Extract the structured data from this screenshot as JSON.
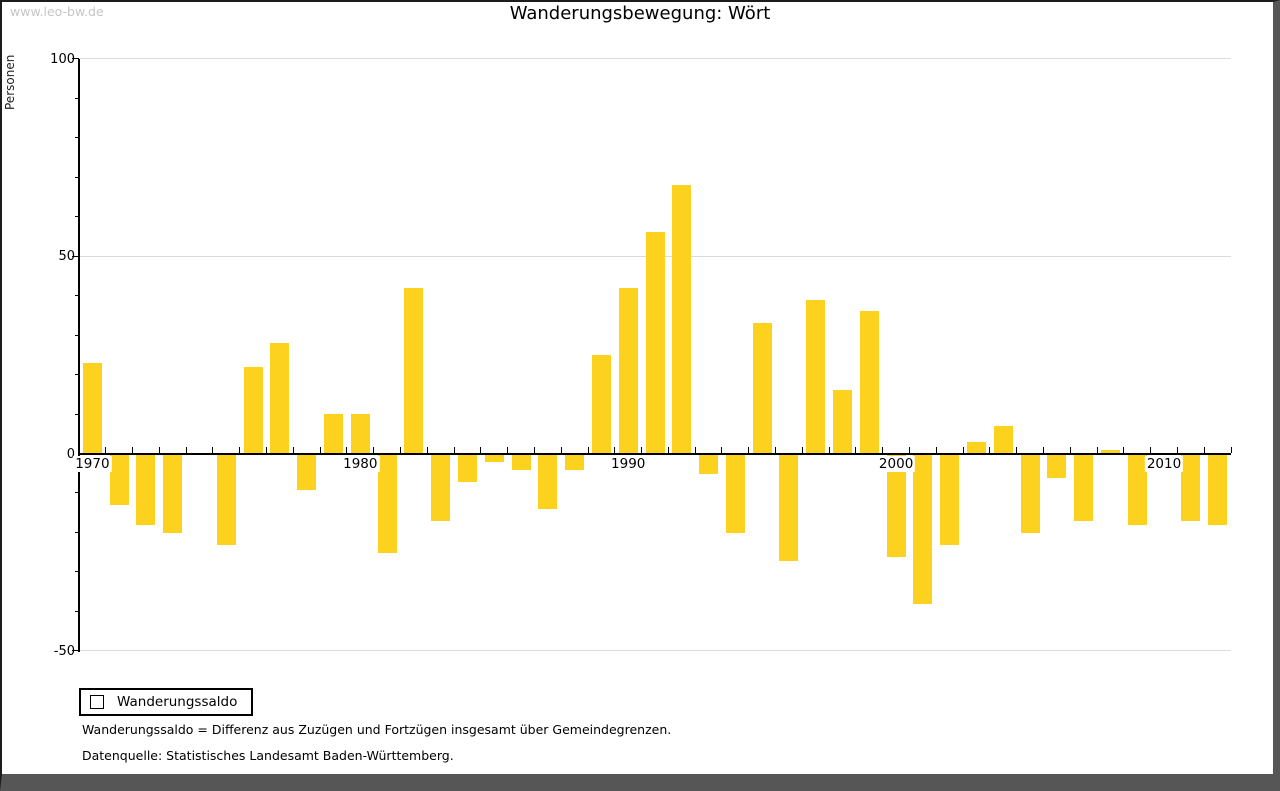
{
  "watermark": "www.leo-bw.de",
  "title": "Wanderungsbewegung: Wört",
  "legend": {
    "label": "Wanderungssaldo"
  },
  "footnotes": {
    "definition": "Wanderungssaldo = Differenz aus Zuzügen und Fortzügen insgesamt über Gemeindegrenzen.",
    "source": "Datenquelle: Statistisches Landesamt Baden-Württemberg."
  },
  "colors": {
    "bar": "#FCD21F",
    "grid": "#DBDBDB",
    "axis": "#000000",
    "watermark_text": "#C6C6C6",
    "frame": "#565656"
  },
  "chart_data": {
    "type": "bar",
    "title": "Wanderungsbewegung: Wört",
    "ylabel": "Personen",
    "ylim": [
      -50,
      100
    ],
    "ytick_major": [
      100,
      50,
      0,
      -50
    ],
    "ytick_minor_step": 10,
    "xtick_labels": [
      1970,
      1980,
      1990,
      2000,
      2010
    ],
    "grid": "horizontal-major",
    "legend_position": "bottom-left",
    "series_name": "Wanderungssaldo",
    "categories": [
      1970,
      1971,
      1972,
      1973,
      1974,
      1975,
      1976,
      1977,
      1978,
      1979,
      1980,
      1981,
      1982,
      1983,
      1984,
      1985,
      1986,
      1987,
      1988,
      1989,
      1990,
      1991,
      1992,
      1993,
      1994,
      1995,
      1996,
      1997,
      1998,
      1999,
      2000,
      2001,
      2002,
      2003,
      2004,
      2005,
      2006,
      2007,
      2008,
      2009,
      2010,
      2011,
      2012
    ],
    "values": [
      23,
      -13,
      -18,
      -20,
      0,
      -23,
      22,
      28,
      -9,
      10,
      10,
      -25,
      42,
      -17,
      -7,
      -2,
      -4,
      -14,
      -4,
      25,
      42,
      56,
      68,
      -5,
      -20,
      33,
      -27,
      39,
      16,
      36,
      -26,
      -38,
      -23,
      3,
      7,
      -20,
      -6,
      -17,
      1,
      -18,
      0,
      -17,
      -18
    ]
  }
}
